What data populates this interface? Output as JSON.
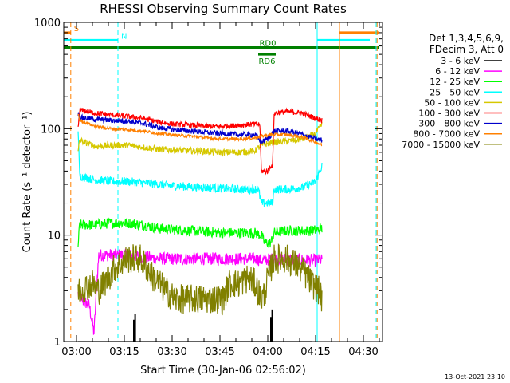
{
  "chart_data": {
    "type": "line",
    "title": "RHESSI Observing Summary Count Rates",
    "xlabel": "Start Time (30-Jan-06 02:56:02)",
    "ylabel": "Count Rate (s⁻¹ detector⁻¹)",
    "x_unit": "minutes after 02:56:02",
    "xlim": [
      0,
      100
    ],
    "ylim": [
      1,
      1000
    ],
    "yscale": "log",
    "x_ticks": [
      {
        "x": 4.0,
        "label": "03:00"
      },
      {
        "x": 19.0,
        "label": "03:15"
      },
      {
        "x": 34.0,
        "label": "03:30"
      },
      {
        "x": 49.0,
        "label": "03:45"
      },
      {
        "x": 64.0,
        "label": "04:00"
      },
      {
        "x": 79.0,
        "label": "04:15"
      },
      {
        "x": 94.0,
        "label": "04:30"
      }
    ],
    "y_ticks": [
      {
        "y": 1,
        "label": "1"
      },
      {
        "y": 10,
        "label": "10"
      },
      {
        "y": 100,
        "label": "100"
      },
      {
        "y": 1000,
        "label": "1000"
      }
    ],
    "legend": {
      "position": "right",
      "header": [
        "Det 1,3,4,5,6,9,",
        "FDecim 3, Att 0"
      ],
      "entries": [
        {
          "label": "3 - 6 keV",
          "color": "#000000"
        },
        {
          "label": "6 - 12 keV",
          "color": "#ff00ff"
        },
        {
          "label": "12 - 25 keV",
          "color": "#00ff00"
        },
        {
          "label": "25 - 50 keV",
          "color": "#00ffff"
        },
        {
          "label": "50 - 100 keV",
          "color": "#d6c800"
        },
        {
          "label": "100 - 300 keV",
          "color": "#ff0000"
        },
        {
          "label": "300 - 800 keV",
          "color": "#0000cc"
        },
        {
          "label": "800 - 7000 keV",
          "color": "#ff8000"
        },
        {
          "label": "7000 - 15000 keV",
          "color": "#808000"
        }
      ]
    },
    "flags": [
      {
        "label": "S",
        "color": "#ff8000",
        "y": 800,
        "segments": [
          [
            -1,
            2.2
          ],
          [
            86.5,
            99
          ]
        ]
      },
      {
        "label": "N",
        "color": "#00ffff",
        "y": 680,
        "segments": [
          [
            -1,
            17
          ],
          [
            79.5,
            96
          ]
        ]
      },
      {
        "label": "RD0",
        "color": "#008000",
        "y": 580,
        "segments": [
          [
            -1,
            99
          ]
        ]
      },
      {
        "label": "RD6",
        "color": "#008000",
        "y": 500,
        "segments": [
          [
            61,
            66.5
          ]
        ]
      }
    ],
    "vlines": [
      {
        "x": 2.2,
        "color": "#ff8000",
        "style": "dashed"
      },
      {
        "x": 17.0,
        "color": "#00ffff",
        "style": "dashed"
      },
      {
        "x": 79.5,
        "color": "#00ffff",
        "style": "solid"
      },
      {
        "x": 86.5,
        "color": "#ff8000",
        "style": "solid"
      },
      {
        "x": 98.0,
        "color": "#00ffff",
        "style": "dashed"
      },
      {
        "x": 98.3,
        "color": "#ff8000",
        "style": "dashed"
      }
    ],
    "series": [
      {
        "name": "3 - 6 keV",
        "color": "#000000",
        "points": [
          [
            4.5,
            1
          ],
          [
            78,
            1
          ]
        ],
        "spikes": [
          [
            22.0,
            1.6
          ],
          [
            22.4,
            1.8
          ],
          [
            65.0,
            1.7
          ],
          [
            65.4,
            2.0
          ]
        ]
      },
      {
        "name": "6 - 12 keV",
        "color": "#ff00ff",
        "points": [
          [
            4.5,
            2.8
          ],
          [
            6,
            2.4
          ],
          [
            8,
            2.2
          ],
          [
            9.5,
            1.2
          ],
          [
            10.5,
            4
          ],
          [
            11,
            6.5
          ],
          [
            20,
            6.5
          ],
          [
            30,
            6
          ],
          [
            50,
            6
          ],
          [
            60,
            6
          ],
          [
            62,
            5.8
          ],
          [
            66,
            6
          ],
          [
            78,
            5.8
          ],
          [
            81,
            5.8
          ]
        ],
        "noise": 0.06
      },
      {
        "name": "12 - 25 keV",
        "color": "#00ff00",
        "points": [
          [
            4.5,
            8
          ],
          [
            5,
            12.5
          ],
          [
            10,
            12.5
          ],
          [
            15,
            13
          ],
          [
            20,
            13
          ],
          [
            25,
            12.5
          ],
          [
            30,
            11.5
          ],
          [
            40,
            11
          ],
          [
            50,
            10.5
          ],
          [
            60,
            10.5
          ],
          [
            62,
            10
          ],
          [
            63,
            8.5
          ],
          [
            65,
            8.5
          ],
          [
            66,
            10.5
          ],
          [
            70,
            11
          ],
          [
            78,
            11
          ],
          [
            81,
            11.5
          ]
        ],
        "noise": 0.05
      },
      {
        "name": "25 - 50 keV",
        "color": "#00ffff",
        "points": [
          [
            4.5,
            100
          ],
          [
            5,
            36
          ],
          [
            10,
            33
          ],
          [
            15,
            32
          ],
          [
            20,
            32
          ],
          [
            25,
            31
          ],
          [
            30,
            30
          ],
          [
            35,
            29
          ],
          [
            45,
            28
          ],
          [
            55,
            27
          ],
          [
            61,
            27
          ],
          [
            62,
            20
          ],
          [
            65.5,
            20
          ],
          [
            66,
            27
          ],
          [
            70,
            27
          ],
          [
            75,
            28
          ],
          [
            79,
            32
          ],
          [
            81,
            45
          ]
        ],
        "noise": 0.04
      },
      {
        "name": "50 - 100 keV",
        "color": "#d6c800",
        "points": [
          [
            4.5,
            60
          ],
          [
            5,
            78
          ],
          [
            10,
            68
          ],
          [
            15,
            70
          ],
          [
            20,
            70
          ],
          [
            25,
            67
          ],
          [
            30,
            64
          ],
          [
            40,
            62
          ],
          [
            50,
            60
          ],
          [
            55,
            60
          ],
          [
            60,
            62
          ],
          [
            62,
            70
          ],
          [
            66,
            75
          ],
          [
            70,
            76
          ],
          [
            75,
            80
          ],
          [
            79,
            90
          ],
          [
            81,
            110
          ]
        ],
        "noise": 0.03
      },
      {
        "name": "100 - 300 keV",
        "color": "#ff0000",
        "points": [
          [
            4.5,
            100
          ],
          [
            5,
            150
          ],
          [
            10,
            140
          ],
          [
            15,
            135
          ],
          [
            20,
            130
          ],
          [
            25,
            125
          ],
          [
            30,
            115
          ],
          [
            35,
            110
          ],
          [
            40,
            108
          ],
          [
            45,
            105
          ],
          [
            50,
            105
          ],
          [
            55,
            108
          ],
          [
            60,
            110
          ],
          [
            61.5,
            110
          ],
          [
            62,
            40
          ],
          [
            64,
            40
          ],
          [
            65,
            45
          ],
          [
            65.5,
            45
          ],
          [
            66,
            140
          ],
          [
            70,
            145
          ],
          [
            75,
            140
          ],
          [
            79,
            125
          ],
          [
            81,
            120
          ]
        ],
        "noise": 0.025
      },
      {
        "name": "300 - 800 keV",
        "color": "#0000cc",
        "points": [
          [
            4.5,
            140
          ],
          [
            5,
            128
          ],
          [
            10,
            122
          ],
          [
            15,
            120
          ],
          [
            20,
            118
          ],
          [
            25,
            112
          ],
          [
            30,
            102
          ],
          [
            35,
            98
          ],
          [
            40,
            95
          ],
          [
            45,
            92
          ],
          [
            50,
            90
          ],
          [
            55,
            88
          ],
          [
            60,
            88
          ],
          [
            62,
            75
          ],
          [
            64,
            80
          ],
          [
            66,
            95
          ],
          [
            70,
            95
          ],
          [
            75,
            88
          ],
          [
            79,
            80
          ],
          [
            81,
            78
          ]
        ],
        "noise": 0.025
      },
      {
        "name": "800 - 7000 keV",
        "color": "#ff8000",
        "points": [
          [
            4.5,
            140
          ],
          [
            5,
            120
          ],
          [
            10,
            105
          ],
          [
            15,
            100
          ],
          [
            20,
            98
          ],
          [
            25,
            95
          ],
          [
            30,
            90
          ],
          [
            35,
            87
          ],
          [
            40,
            85
          ],
          [
            45,
            82
          ],
          [
            50,
            80
          ],
          [
            55,
            80
          ],
          [
            60,
            82
          ],
          [
            62,
            85
          ],
          [
            65,
            88
          ],
          [
            70,
            88
          ],
          [
            75,
            83
          ],
          [
            79,
            75
          ],
          [
            81,
            70
          ]
        ],
        "noise": 0.015
      },
      {
        "name": "7000 - 15000 keV",
        "color": "#808000",
        "points": [
          [
            4.5,
            3
          ],
          [
            9,
            3.5
          ],
          [
            11,
            3
          ],
          [
            14,
            4
          ],
          [
            16,
            5
          ],
          [
            18,
            5.5
          ],
          [
            20,
            6
          ],
          [
            24,
            6
          ],
          [
            26,
            5
          ],
          [
            28,
            4
          ],
          [
            30,
            3.5
          ],
          [
            32,
            3
          ],
          [
            35,
            2.5
          ],
          [
            40,
            2.5
          ],
          [
            45,
            2.5
          ],
          [
            50,
            2.5
          ],
          [
            52,
            3.5
          ],
          [
            55,
            3.5
          ],
          [
            58,
            4
          ],
          [
            60,
            3.5
          ],
          [
            62,
            2.5
          ],
          [
            63,
            2.8
          ],
          [
            64,
            4
          ],
          [
            66,
            6
          ],
          [
            70,
            6
          ],
          [
            74,
            5
          ],
          [
            78,
            3.5
          ],
          [
            80,
            3
          ],
          [
            81,
            2.5
          ]
        ],
        "noise": 0.14
      }
    ]
  },
  "footer": {
    "date": "13-Oct-2021 23:10"
  }
}
